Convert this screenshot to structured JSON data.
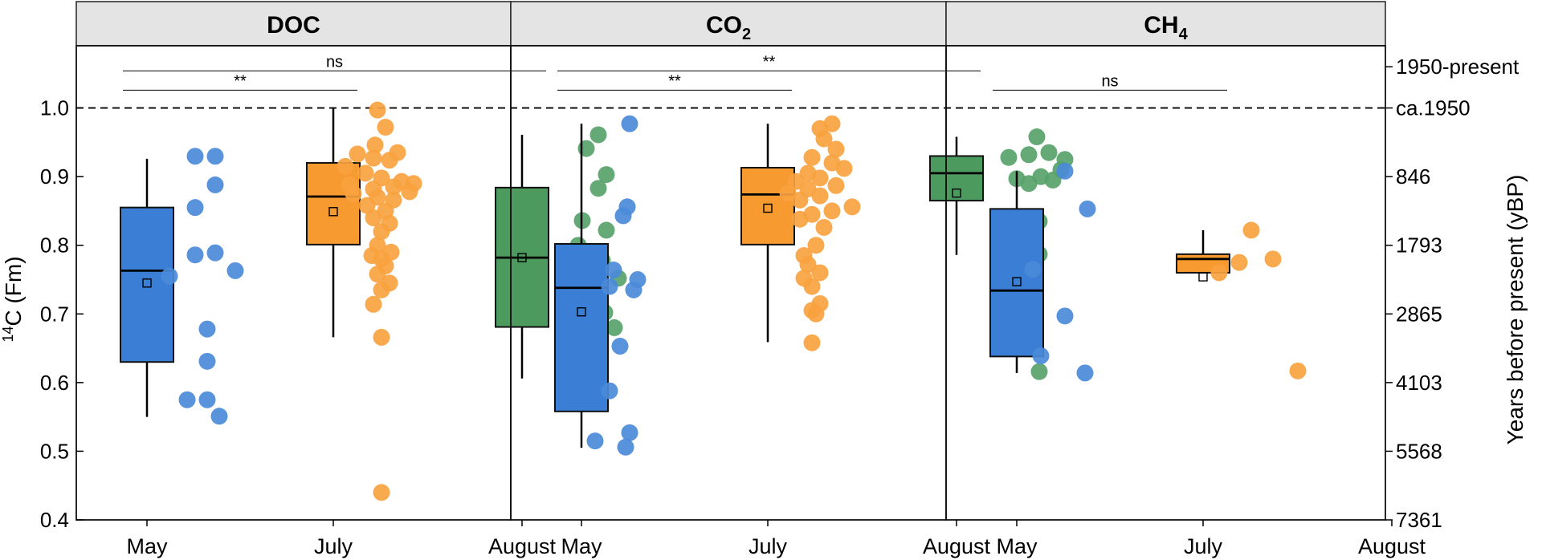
{
  "chart_data": {
    "type": "box_scatter",
    "y_axis": {
      "label_sup": "14",
      "label_main": "C (Fm)",
      "range": [
        0.4,
        1.1
      ],
      "ticks": [
        0.4,
        0.5,
        0.6,
        0.7,
        0.8,
        0.9,
        1.0
      ],
      "tick_labels": [
        "0.4",
        "0.5",
        "0.6",
        "0.7",
        "0.8",
        "0.9",
        "1.0"
      ]
    },
    "y2_axis": {
      "label": "Years before present (yBP)",
      "ticks": [
        {
          "fm": 1.06,
          "label": "1950-present"
        },
        {
          "fm": 1.0,
          "label": "ca.1950"
        },
        {
          "fm": 0.9,
          "label": "846"
        },
        {
          "fm": 0.8,
          "label": "1793"
        },
        {
          "fm": 0.7,
          "label": "2865"
        },
        {
          "fm": 0.6,
          "label": "4103"
        },
        {
          "fm": 0.5,
          "label": "5568"
        },
        {
          "fm": 0.4,
          "label": "7361"
        }
      ]
    },
    "reference_line": {
      "value": 1.0,
      "style": "dashed"
    },
    "categories": [
      "May",
      "July",
      "August"
    ],
    "colors": {
      "May": {
        "fill": "#3a7fd5",
        "dot": "#4a8ad9"
      },
      "July": {
        "fill": "#f79a2f",
        "dot": "#f8a23f"
      },
      "August": {
        "fill": "#4d9a5e",
        "dot": "#57a26a"
      },
      "header_bg": "#e4e4e4"
    },
    "panels": [
      {
        "title_main": "DOC",
        "title_sub": "",
        "groups": [
          {
            "month": "May",
            "box": {
              "whisker_low": 0.55,
              "q1": 0.63,
              "median": 0.763,
              "q3": 0.855,
              "whisker_high": 0.926,
              "mean": 0.745
            },
            "points": [
              0.755,
              0.925,
              0.925,
              0.855,
              0.888,
              0.786,
              0.789,
              0.763,
              0.678,
              0.631,
              0.575,
              0.575,
              0.551
            ]
          },
          {
            "month": "July",
            "box": {
              "whisker_low": 0.666,
              "q1": 0.801,
              "median": 0.871,
              "q3": 0.92,
              "whisker_high": 1.0,
              "mean": 0.849
            },
            "points": [
              0.997,
              0.972,
              0.946,
              0.935,
              0.933,
              0.927,
              0.924,
              0.915,
              0.905,
              0.898,
              0.893,
              0.89,
              0.888,
              0.885,
              0.882,
              0.878,
              0.875,
              0.87,
              0.866,
              0.858,
              0.85,
              0.84,
              0.832,
              0.82,
              0.8,
              0.79,
              0.785,
              0.78,
              0.77,
              0.758,
              0.745,
              0.735,
              0.714,
              0.666,
              0.44
            ]
          },
          {
            "month": "August",
            "box": {
              "whisker_low": 0.606,
              "q1": 0.681,
              "median": 0.782,
              "q3": 0.884,
              "whisker_high": 0.961,
              "mean": 0.782
            },
            "points": [
              0.961,
              0.941,
              0.903,
              0.883,
              0.836,
              0.822,
              0.8,
              0.778,
              0.752,
              0.745,
              0.702,
              0.68,
              0.669,
              0.655,
              0.606
            ]
          }
        ],
        "brackets": [
          {
            "from": "May",
            "to": "August",
            "label": "ns",
            "y": 1.054
          },
          {
            "from": "May",
            "to": "July",
            "label": "**",
            "y": 1.026
          }
        ]
      },
      {
        "title_main": "CO",
        "title_sub": "2",
        "groups": [
          {
            "month": "May",
            "box": {
              "whisker_low": 0.505,
              "q1": 0.558,
              "median": 0.738,
              "q3": 0.802,
              "whisker_high": 0.977,
              "mean": 0.703
            },
            "points": [
              0.977,
              0.856,
              0.843,
              0.764,
              0.75,
              0.74,
              0.735,
              0.653,
              0.588,
              0.527,
              0.515,
              0.506
            ]
          },
          {
            "month": "July",
            "box": {
              "whisker_low": 0.659,
              "q1": 0.801,
              "median": 0.874,
              "q3": 0.913,
              "whisker_high": 0.977,
              "mean": 0.854
            },
            "points": [
              0.977,
              0.97,
              0.955,
              0.94,
              0.928,
              0.92,
              0.912,
              0.905,
              0.898,
              0.893,
              0.887,
              0.882,
              0.876,
              0.872,
              0.866,
              0.856,
              0.85,
              0.845,
              0.838,
              0.826,
              0.8,
              0.785,
              0.772,
              0.76,
              0.752,
              0.74,
              0.715,
              0.705,
              0.7,
              0.658
            ]
          },
          {
            "month": "August",
            "box": {
              "whisker_low": 0.786,
              "q1": 0.865,
              "median": 0.905,
              "q3": 0.93,
              "whisker_high": 0.958,
              "mean": 0.876
            },
            "points": [
              0.958,
              0.935,
              0.932,
              0.928,
              0.925,
              0.91,
              0.9,
              0.897,
              0.895,
              0.89,
              0.835,
              0.787,
              0.616
            ]
          }
        ],
        "brackets": [
          {
            "from": "May",
            "to": "August",
            "label": "**",
            "y": 1.054
          },
          {
            "from": "May",
            "to": "July",
            "label": "**",
            "y": 1.026
          }
        ]
      },
      {
        "title_main": "CH",
        "title_sub": "4",
        "groups": [
          {
            "month": "May",
            "box": {
              "whisker_low": 0.614,
              "q1": 0.638,
              "median": 0.734,
              "q3": 0.853,
              "whisker_high": 0.908,
              "mean": 0.747
            },
            "points": [
              0.908,
              0.853,
              0.765,
              0.697,
              0.639,
              0.614
            ]
          },
          {
            "month": "July",
            "box": {
              "whisker_low": 0.76,
              "q1": 0.76,
              "median": 0.78,
              "q3": 0.787,
              "whisker_high": 0.822,
              "mean": 0.754
            },
            "points": [
              0.822,
              0.78,
              0.775,
              0.76,
              0.617
            ]
          }
        ],
        "brackets": [
          {
            "from": "May",
            "to": "July",
            "label": "ns",
            "y": 1.026
          }
        ]
      }
    ]
  }
}
